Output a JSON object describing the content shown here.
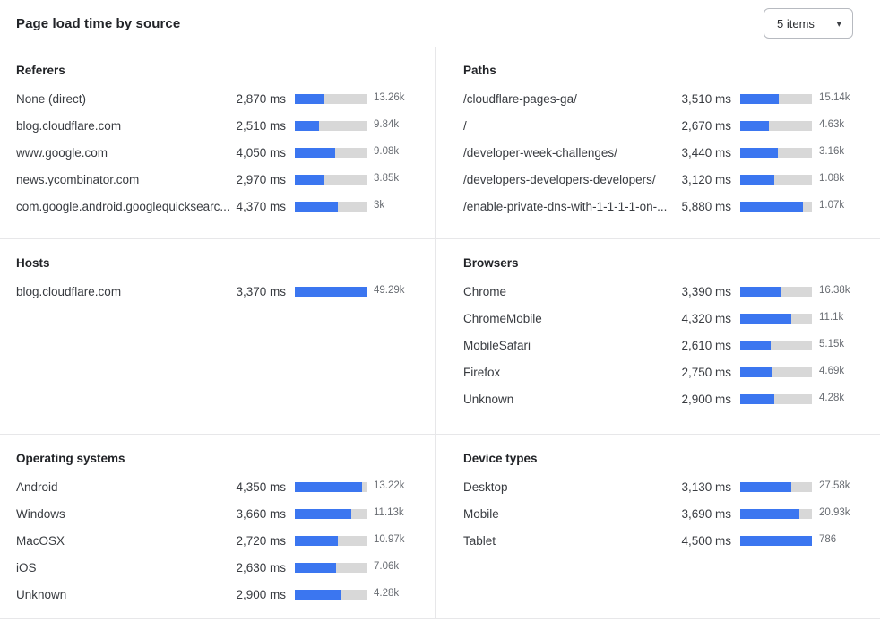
{
  "header": {
    "title": "Page load time by source",
    "items_select": {
      "value": "5 items",
      "caret": "▾"
    }
  },
  "colors": {
    "bar_fill": "#3b76f0",
    "bar_track": "#d8d8d8",
    "divider": "#e7e7e9"
  },
  "chart_data": {
    "type": "bar",
    "title": "Page load time by source",
    "unit": "ms",
    "legend_position": "none",
    "grid": false,
    "panels": [
      {
        "title": "Referers",
        "rows": [
          {
            "label": "None (direct)",
            "ms": 2870,
            "ms_label": "2,870 ms",
            "count": "13.26k",
            "bar_pct": 40
          },
          {
            "label": "blog.cloudflare.com",
            "ms": 2510,
            "ms_label": "2,510 ms",
            "count": "9.84k",
            "bar_pct": 34
          },
          {
            "label": "www.google.com",
            "ms": 4050,
            "ms_label": "4,050 ms",
            "count": "9.08k",
            "bar_pct": 56
          },
          {
            "label": "news.ycombinator.com",
            "ms": 2970,
            "ms_label": "2,970 ms",
            "count": "3.85k",
            "bar_pct": 41
          },
          {
            "label": "com.google.android.googlequicksearc...",
            "ms": 4370,
            "ms_label": "4,370 ms",
            "count": "3k",
            "bar_pct": 60
          }
        ]
      },
      {
        "title": "Paths",
        "rows": [
          {
            "label": "/cloudflare-pages-ga/",
            "ms": 3510,
            "ms_label": "3,510 ms",
            "count": "15.14k",
            "bar_pct": 54
          },
          {
            "label": "/",
            "ms": 2670,
            "ms_label": "2,670 ms",
            "count": "4.63k",
            "bar_pct": 40
          },
          {
            "label": "/developer-week-challenges/",
            "ms": 3440,
            "ms_label": "3,440 ms",
            "count": "3.16k",
            "bar_pct": 53
          },
          {
            "label": "/developers-developers-developers/",
            "ms": 3120,
            "ms_label": "3,120 ms",
            "count": "1.08k",
            "bar_pct": 47
          },
          {
            "label": "/enable-private-dns-with-1-1-1-1-on-...",
            "ms": 5880,
            "ms_label": "5,880 ms",
            "count": "1.07k",
            "bar_pct": 88
          }
        ]
      },
      {
        "title": "Hosts",
        "rows": [
          {
            "label": "blog.cloudflare.com",
            "ms": 3370,
            "ms_label": "3,370 ms",
            "count": "49.29k",
            "bar_pct": 100
          }
        ]
      },
      {
        "title": "Browsers",
        "rows": [
          {
            "label": "Chrome",
            "ms": 3390,
            "ms_label": "3,390 ms",
            "count": "16.38k",
            "bar_pct": 57
          },
          {
            "label": "ChromeMobile",
            "ms": 4320,
            "ms_label": "4,320 ms",
            "count": "11.1k",
            "bar_pct": 71
          },
          {
            "label": "MobileSafari",
            "ms": 2610,
            "ms_label": "2,610 ms",
            "count": "5.15k",
            "bar_pct": 43
          },
          {
            "label": "Firefox",
            "ms": 2750,
            "ms_label": "2,750 ms",
            "count": "4.69k",
            "bar_pct": 45
          },
          {
            "label": "Unknown",
            "ms": 2900,
            "ms_label": "2,900 ms",
            "count": "4.28k",
            "bar_pct": 48
          }
        ]
      },
      {
        "title": "Operating systems",
        "rows": [
          {
            "label": "Android",
            "ms": 4350,
            "ms_label": "4,350 ms",
            "count": "13.22k",
            "bar_pct": 94
          },
          {
            "label": "Windows",
            "ms": 3660,
            "ms_label": "3,660 ms",
            "count": "11.13k",
            "bar_pct": 79
          },
          {
            "label": "MacOSX",
            "ms": 2720,
            "ms_label": "2,720 ms",
            "count": "10.97k",
            "bar_pct": 60
          },
          {
            "label": "iOS",
            "ms": 2630,
            "ms_label": "2,630 ms",
            "count": "7.06k",
            "bar_pct": 57
          },
          {
            "label": "Unknown",
            "ms": 2900,
            "ms_label": "2,900 ms",
            "count": "4.28k",
            "bar_pct": 64
          }
        ]
      },
      {
        "title": "Device types",
        "rows": [
          {
            "label": "Desktop",
            "ms": 3130,
            "ms_label": "3,130 ms",
            "count": "27.58k",
            "bar_pct": 71
          },
          {
            "label": "Mobile",
            "ms": 3690,
            "ms_label": "3,690 ms",
            "count": "20.93k",
            "bar_pct": 82
          },
          {
            "label": "Tablet",
            "ms": 4500,
            "ms_label": "4,500 ms",
            "count": "786",
            "bar_pct": 100
          }
        ]
      }
    ]
  }
}
